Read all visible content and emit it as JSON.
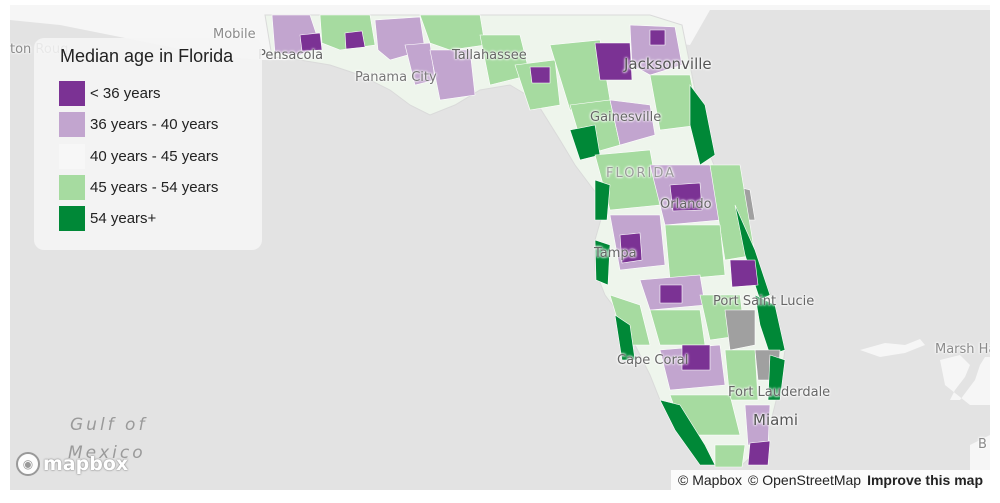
{
  "legend": {
    "title": "Median age in Florida",
    "items": [
      {
        "label": "< 36 years",
        "color": "#7b3294"
      },
      {
        "label": "36 years - 40 years",
        "color": "#c2a5cf"
      },
      {
        "label": "40 years - 45 years",
        "color": "#f7f7f7"
      },
      {
        "label": "45 years - 54 years",
        "color": "#a6dba0"
      },
      {
        "label": "54 years+",
        "color": "#008837"
      }
    ]
  },
  "map_labels": {
    "mobile": "Mobile",
    "baton_rouge": "ton Roug",
    "pensacola": "Pensacola",
    "tallahassee": "Tallahassee",
    "panama_city": "Panama City",
    "jacksonville": "Jacksonville",
    "gainesville": "Gainesville",
    "florida": "FLORIDA",
    "orlando": "Orlando",
    "tampa": "Tampa",
    "port_saint_lucie": "Port Saint Lucie",
    "cape_coral": "Cape Coral",
    "fort_lauderdale": "Fort Lauderdale",
    "miami": "Miami",
    "marsh_harbour": "Marsh Ha",
    "gulf_line1": "Gulf of",
    "gulf_line2": "Mexico",
    "edge_b": "B"
  },
  "logo": "mapbox",
  "attribution": {
    "mapbox": "© Mapbox",
    "osm": "© OpenStreetMap",
    "improve": "Improve this map"
  }
}
